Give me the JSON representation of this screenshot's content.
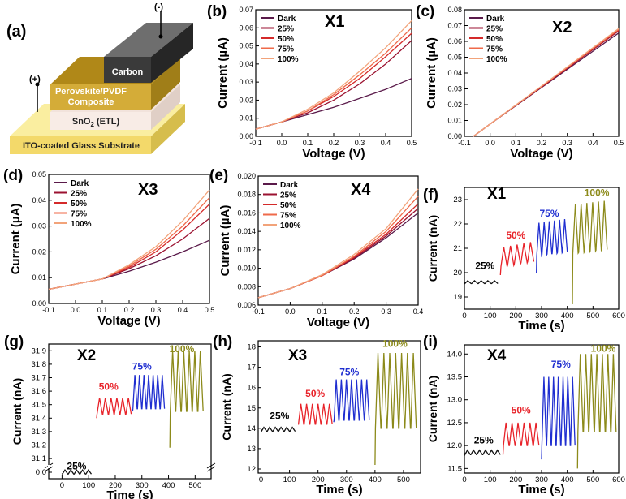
{
  "colors": {
    "dark": "#5a1a4a",
    "p25": "#9b1230",
    "p50": "#d42a2a",
    "p75": "#ef6a4a",
    "p100": "#f2a37a",
    "tr25": "#111111",
    "tr50": "#e8232a",
    "tr75": "#1f2ed0",
    "tr100": "#8c8a1a"
  },
  "device": {
    "panel_label": "(a)",
    "minus": "(-)",
    "plus": "(+)",
    "carbon": "Carbon",
    "perovskite_line1": "Perovskite/PVDF",
    "perovskite_line2": "Composite",
    "sno2": "SnO",
    "sno2_sub": "2",
    "sno2_rest": " (ETL)",
    "ito": "ITO-coated Glass Substrate"
  },
  "chart_data": [
    {
      "id": "b",
      "type": "line",
      "panel_label": "(b)",
      "sample": "X1",
      "xlabel": "Voltage (V)",
      "ylabel": "Current (µA)",
      "xlim": [
        -0.1,
        0.5
      ],
      "ylim": [
        0,
        0.07
      ],
      "xticks": [
        -0.1,
        0.0,
        0.1,
        0.2,
        0.3,
        0.4,
        0.5
      ],
      "xtick_labels": [
        "-0.1",
        "0.0",
        "0.1",
        "0.2",
        "0.3",
        "0.4",
        "0.5"
      ],
      "yticks": [
        0.0,
        0.01,
        0.02,
        0.03,
        0.04,
        0.05,
        0.06,
        0.07
      ],
      "ytick_labels": [
        "0.00",
        "0.01",
        "0.02",
        "0.03",
        "0.04",
        "0.05",
        "0.06",
        "0.07"
      ],
      "legend": [
        "Dark",
        "25%",
        "50%",
        "75%",
        "100%"
      ],
      "legend_position": "top-left",
      "x": [
        -0.1,
        0.0,
        0.1,
        0.2,
        0.3,
        0.4,
        0.5
      ],
      "series": [
        {
          "name": "Dark",
          "values": [
            0.004,
            0.008,
            0.012,
            0.016,
            0.021,
            0.026,
            0.032
          ]
        },
        {
          "name": "25%",
          "values": [
            0.004,
            0.008,
            0.013,
            0.02,
            0.029,
            0.04,
            0.053
          ]
        },
        {
          "name": "50%",
          "values": [
            0.004,
            0.008,
            0.014,
            0.022,
            0.032,
            0.044,
            0.057
          ]
        },
        {
          "name": "75%",
          "values": [
            0.004,
            0.008,
            0.014,
            0.023,
            0.034,
            0.046,
            0.06
          ]
        },
        {
          "name": "100%",
          "values": [
            0.004,
            0.008,
            0.015,
            0.024,
            0.036,
            0.049,
            0.064
          ]
        }
      ]
    },
    {
      "id": "c",
      "type": "line",
      "panel_label": "(c)",
      "sample": "X2",
      "xlabel": "Voltage (V)",
      "ylabel": "Current (µA)",
      "xlim": [
        -0.1,
        0.5
      ],
      "ylim": [
        0,
        0.08
      ],
      "xticks": [
        -0.1,
        0.0,
        0.1,
        0.2,
        0.3,
        0.4,
        0.5
      ],
      "xtick_labels": [
        "-0.1",
        "0.0",
        "0.1",
        "0.2",
        "0.3",
        "0.4",
        "0.5"
      ],
      "yticks": [
        0.0,
        0.01,
        0.02,
        0.03,
        0.04,
        0.05,
        0.06,
        0.07,
        0.08
      ],
      "ytick_labels": [
        "0.00",
        "0.01",
        "0.02",
        "0.03",
        "0.04",
        "0.05",
        "0.06",
        "0.07",
        "0.08"
      ],
      "legend": [
        "Dark",
        "25%",
        "50%",
        "75%",
        "100%"
      ],
      "legend_position": "top-left",
      "x": [
        -0.065,
        0.0,
        0.1,
        0.2,
        0.3,
        0.4,
        0.5
      ],
      "series": [
        {
          "name": "Dark",
          "values": [
            0.0,
            0.0078,
            0.0193,
            0.0308,
            0.0423,
            0.0538,
            0.0653
          ]
        },
        {
          "name": "25%",
          "values": [
            0.0,
            0.0078,
            0.0195,
            0.0312,
            0.043,
            0.0548,
            0.0666
          ]
        },
        {
          "name": "50%",
          "values": [
            0.0,
            0.0078,
            0.0196,
            0.0314,
            0.0433,
            0.0552,
            0.0671
          ]
        },
        {
          "name": "75%",
          "values": [
            0.0,
            0.0078,
            0.0197,
            0.0316,
            0.0436,
            0.0556,
            0.0676
          ]
        },
        {
          "name": "100%",
          "values": [
            0.0,
            0.0078,
            0.0198,
            0.0318,
            0.0439,
            0.056,
            0.0681
          ]
        }
      ]
    },
    {
      "id": "d",
      "type": "line",
      "panel_label": "(d)",
      "sample": "X3",
      "xlabel": "Voltage (V)",
      "ylabel": "Current (µA)",
      "xlim": [
        -0.1,
        0.5
      ],
      "ylim": [
        0,
        0.05
      ],
      "xticks": [
        -0.1,
        0.0,
        0.1,
        0.2,
        0.3,
        0.4,
        0.5
      ],
      "xtick_labels": [
        "-0.1",
        "0.0",
        "0.1",
        "0.2",
        "0.3",
        "0.4",
        "0.5"
      ],
      "yticks": [
        0.0,
        0.01,
        0.02,
        0.03,
        0.04,
        0.05
      ],
      "ytick_labels": [
        "0.00",
        "0.01",
        "0.02",
        "0.03",
        "0.04",
        "0.05"
      ],
      "legend": [
        "Dark",
        "25%",
        "50%",
        "75%",
        "100%"
      ],
      "legend_position": "top-left",
      "x": [
        -0.1,
        0.0,
        0.1,
        0.2,
        0.3,
        0.4,
        0.5
      ],
      "series": [
        {
          "name": "Dark",
          "values": [
            0.0055,
            0.0075,
            0.0095,
            0.0125,
            0.016,
            0.02,
            0.0245
          ]
        },
        {
          "name": "25%",
          "values": [
            0.0055,
            0.0075,
            0.0095,
            0.0135,
            0.0185,
            0.025,
            0.033
          ]
        },
        {
          "name": "50%",
          "values": [
            0.0055,
            0.0075,
            0.0095,
            0.014,
            0.02,
            0.0285,
            0.0385
          ]
        },
        {
          "name": "75%",
          "values": [
            0.0055,
            0.0075,
            0.0095,
            0.0145,
            0.021,
            0.03,
            0.041
          ]
        },
        {
          "name": "100%",
          "values": [
            0.0055,
            0.0075,
            0.0095,
            0.015,
            0.022,
            0.032,
            0.044
          ]
        }
      ]
    },
    {
      "id": "e",
      "type": "line",
      "panel_label": "(e)",
      "sample": "X4",
      "xlabel": "Voltage (V)",
      "ylabel": "Current (µA)",
      "xlim": [
        -0.1,
        0.4
      ],
      "ylim": [
        0.006,
        0.02
      ],
      "xticks": [
        -0.1,
        0.0,
        0.1,
        0.2,
        0.3,
        0.4
      ],
      "xtick_labels": [
        "-0.1",
        "0.0",
        "0.1",
        "0.2",
        "0.3",
        "0.4"
      ],
      "yticks": [
        0.006,
        0.008,
        0.01,
        0.012,
        0.014,
        0.016,
        0.018,
        0.02
      ],
      "ytick_labels": [
        "0.006",
        "0.008",
        "0.010",
        "0.012",
        "0.014",
        "0.016",
        "0.018",
        "0.020"
      ],
      "legend": [
        "Dark",
        "25%",
        "50%",
        "75%",
        "100%"
      ],
      "legend_position": "top-left",
      "x": [
        -0.1,
        0.0,
        0.1,
        0.2,
        0.3,
        0.4
      ],
      "series": [
        {
          "name": "Dark",
          "values": [
            0.0068,
            0.0078,
            0.0092,
            0.011,
            0.0133,
            0.016
          ]
        },
        {
          "name": "25%",
          "values": [
            0.0068,
            0.0078,
            0.0092,
            0.0111,
            0.0135,
            0.0165
          ]
        },
        {
          "name": "50%",
          "values": [
            0.0068,
            0.0078,
            0.0092,
            0.0112,
            0.0137,
            0.017
          ]
        },
        {
          "name": "75%",
          "values": [
            0.0068,
            0.0078,
            0.0092,
            0.0113,
            0.014,
            0.0178
          ]
        },
        {
          "name": "100%",
          "values": [
            0.0068,
            0.0078,
            0.0093,
            0.0115,
            0.0143,
            0.0186
          ]
        }
      ]
    },
    {
      "id": "f",
      "type": "line",
      "panel_label": "(f)",
      "sample": "X1",
      "xlabel": "Time (s)",
      "ylabel": "Current (nA)",
      "xlim": [
        0,
        600
      ],
      "ylim": [
        18.5,
        23.5
      ],
      "xticks": [
        0,
        100,
        200,
        300,
        400,
        500,
        600
      ],
      "xtick_labels": [
        "0",
        "100",
        "200",
        "300",
        "400",
        "500",
        "600"
      ],
      "yticks": [
        19,
        20,
        21,
        22,
        23
      ],
      "ytick_labels": [
        "19",
        "20",
        "21",
        "22",
        "23"
      ],
      "segments": [
        {
          "label": "25%",
          "color_key": "tr25",
          "t_start": 0,
          "t_end": 130,
          "start": 19.6,
          "base": 19.55,
          "amp": 0.12,
          "cycles": 5,
          "step": 0,
          "label_t": 80,
          "label_y": 20.15
        },
        {
          "label": "50%",
          "color_key": "tr50",
          "t_start": 140,
          "t_end": 270,
          "start": 19.9,
          "base": 20.25,
          "amp": 0.8,
          "cycles": 5,
          "step": 0.05,
          "label_t": 200,
          "label_y": 21.4
        },
        {
          "label": "75%",
          "color_key": "tr75",
          "t_start": 280,
          "t_end": 400,
          "start": 20.0,
          "base": 20.7,
          "amp": 1.35,
          "cycles": 6,
          "step": 0.03,
          "label_t": 330,
          "label_y": 22.3
        },
        {
          "label": "100%",
          "color_key": "tr100",
          "t_start": 420,
          "t_end": 555,
          "start": 18.7,
          "base": 20.8,
          "amp": 2.0,
          "cycles": 6,
          "step": 0.03,
          "label_t": 515,
          "label_y": 23.15
        }
      ]
    },
    {
      "id": "g",
      "type": "line",
      "panel_label": "(g)",
      "sample": "X2",
      "xlabel": "Time (s)",
      "ylabel": "Current (nA)",
      "xlim": [
        -50,
        560
      ],
      "ylim": [
        30.95,
        31.95
      ],
      "broken_axis": {
        "lower_value": 0.0,
        "upper_start": 31.1
      },
      "xticks": [
        0,
        100,
        200,
        300,
        400,
        500
      ],
      "xtick_labels": [
        "0",
        "100",
        "200",
        "300",
        "400",
        "500"
      ],
      "yticks": [
        31.1,
        31.2,
        31.3,
        31.4,
        31.5,
        31.6,
        31.7,
        31.8,
        31.9
      ],
      "ytick_labels": [
        "31.1",
        "31.2",
        "31.3",
        "31.4",
        "31.5",
        "31.6",
        "31.7",
        "31.8",
        "31.9",
        "0.0"
      ],
      "segments": [
        {
          "label": "25%",
          "color_key": "tr25",
          "t_start": 0,
          "t_end": 110,
          "start": 30.99,
          "base": 30.985,
          "amp": 0.03,
          "cycles": 5,
          "step": 0,
          "label_t": 55,
          "label_y": 31.02
        },
        {
          "label": "50%",
          "color_key": "tr50",
          "t_start": 130,
          "t_end": 260,
          "start": 31.4,
          "base": 31.43,
          "amp": 0.12,
          "cycles": 6,
          "step": 0,
          "label_t": 175,
          "label_y": 31.61
        },
        {
          "label": "75%",
          "color_key": "tr75",
          "t_start": 265,
          "t_end": 385,
          "start": 31.45,
          "base": 31.47,
          "amp": 0.25,
          "cycles": 7,
          "step": 0,
          "label_t": 300,
          "label_y": 31.76
        },
        {
          "label": "100%",
          "color_key": "tr100",
          "t_start": 405,
          "t_end": 530,
          "start": 31.18,
          "base": 31.45,
          "amp": 0.45,
          "cycles": 6,
          "step": 0,
          "label_t": 450,
          "label_y": 31.89
        }
      ]
    },
    {
      "id": "h",
      "type": "line",
      "panel_label": "(h)",
      "sample": "X3",
      "xlabel": "Time (s)",
      "ylabel": "Current (nA)",
      "xlim": [
        -10,
        560
      ],
      "ylim": [
        11.8,
        18.3
      ],
      "xticks": [
        0,
        100,
        200,
        300,
        400,
        500
      ],
      "xtick_labels": [
        "0",
        "100",
        "200",
        "300",
        "400",
        "500"
      ],
      "yticks": [
        12,
        13,
        14,
        15,
        16,
        17,
        18
      ],
      "ytick_labels": [
        "12",
        "13",
        "14",
        "15",
        "16",
        "17",
        "18"
      ],
      "segments": [
        {
          "label": "25%",
          "color_key": "tr25",
          "t_start": 0,
          "t_end": 120,
          "start": 13.95,
          "base": 13.85,
          "amp": 0.2,
          "cycles": 6,
          "step": 0,
          "label_t": 65,
          "label_y": 14.45
        },
        {
          "label": "50%",
          "color_key": "tr50",
          "t_start": 130,
          "t_end": 250,
          "start": 14.2,
          "base": 14.2,
          "amp": 1.0,
          "cycles": 6,
          "step": 0,
          "label_t": 190,
          "label_y": 15.55
        },
        {
          "label": "75%",
          "color_key": "tr75",
          "t_start": 255,
          "t_end": 380,
          "start": 14.3,
          "base": 14.4,
          "amp": 2.0,
          "cycles": 7,
          "step": 0,
          "label_t": 310,
          "label_y": 16.6
        },
        {
          "label": "100%",
          "color_key": "tr100",
          "t_start": 400,
          "t_end": 545,
          "start": 12.2,
          "base": 14.0,
          "amp": 3.7,
          "cycles": 7,
          "step": 0,
          "label_t": 470,
          "label_y": 18.0
        }
      ]
    },
    {
      "id": "i",
      "type": "line",
      "panel_label": "(i)",
      "sample": "X4",
      "xlabel": "Time (s)",
      "ylabel": "Current (nA)",
      "xlim": [
        0,
        600
      ],
      "ylim": [
        11.4,
        14.2
      ],
      "xticks": [
        0,
        100,
        200,
        300,
        400,
        500,
        600
      ],
      "xtick_labels": [
        "0",
        "100",
        "200",
        "300",
        "400",
        "500",
        "600"
      ],
      "yticks": [
        11.5,
        12.0,
        12.5,
        13.0,
        13.5,
        14.0
      ],
      "ytick_labels": [
        "11.5",
        "12.0",
        "12.5",
        "13.0",
        "13.5",
        "14.0"
      ],
      "segments": [
        {
          "label": "25%",
          "color_key": "tr25",
          "t_start": 0,
          "t_end": 140,
          "start": 11.85,
          "base": 11.8,
          "amp": 0.1,
          "cycles": 6,
          "step": 0,
          "label_t": 75,
          "label_y": 12.05
        },
        {
          "label": "50%",
          "color_key": "tr50",
          "t_start": 150,
          "t_end": 290,
          "start": 11.8,
          "base": 12.0,
          "amp": 0.5,
          "cycles": 6,
          "step": 0,
          "label_t": 220,
          "label_y": 12.7
        },
        {
          "label": "75%",
          "color_key": "tr75",
          "t_start": 300,
          "t_end": 430,
          "start": 11.7,
          "base": 12.0,
          "amp": 1.5,
          "cycles": 7,
          "step": 0,
          "label_t": 375,
          "label_y": 13.7
        },
        {
          "label": "100%",
          "color_key": "tr100",
          "t_start": 440,
          "t_end": 590,
          "start": 11.5,
          "base": 12.3,
          "amp": 1.7,
          "cycles": 7,
          "step": 0,
          "label_t": 540,
          "label_y": 14.05
        }
      ]
    }
  ]
}
